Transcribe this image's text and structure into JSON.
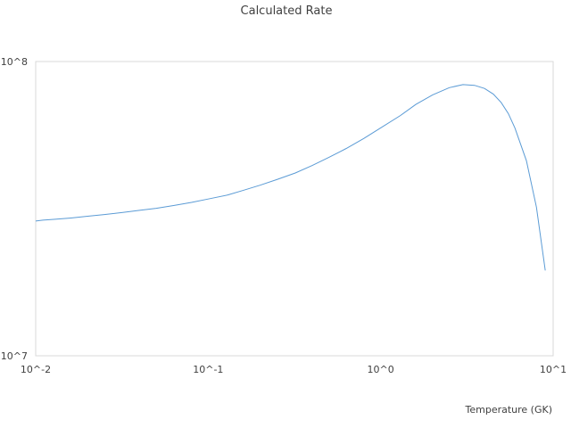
{
  "chart_data": {
    "type": "line",
    "title": "Calculated Rate",
    "xlabel": "Temperature (GK)",
    "ylabel": "",
    "x_scale": "log",
    "y_scale": "log",
    "xlim": [
      0.01,
      10
    ],
    "ylim": [
      10000000,
      100000000
    ],
    "x_ticks": [
      {
        "value": 0.01,
        "label": "10^-2"
      },
      {
        "value": 0.1,
        "label": "10^-1"
      },
      {
        "value": 1,
        "label": "10^0"
      },
      {
        "value": 10,
        "label": "10^1"
      }
    ],
    "y_ticks": [
      {
        "value": 10000000,
        "label": "10^7"
      },
      {
        "value": 100000000,
        "label": "10^8"
      }
    ],
    "grid": false,
    "legend": "none",
    "series": [
      {
        "color": "#5b9bd5",
        "x": [
          0.01,
          0.011,
          0.013,
          0.016,
          0.02,
          0.025,
          0.032,
          0.04,
          0.05,
          0.063,
          0.08,
          0.1,
          0.13,
          0.16,
          0.2,
          0.25,
          0.32,
          0.4,
          0.5,
          0.63,
          0.8,
          1.0,
          1.3,
          1.6,
          2.0,
          2.5,
          3.0,
          3.5,
          4.0,
          4.5,
          5.0,
          5.5,
          6.0,
          7.0,
          8.0,
          9.0
        ],
        "y": [
          28700000,
          28900000,
          29100000,
          29400000,
          29800000,
          30200000,
          30700000,
          31200000,
          31700000,
          32400000,
          33200000,
          34100000,
          35200000,
          36500000,
          38000000,
          39700000,
          41800000,
          44300000,
          47200000,
          50600000,
          54800000,
          59500000,
          65500000,
          71500000,
          77000000,
          81500000,
          83500000,
          83000000,
          81000000,
          77500000,
          72500000,
          66500000,
          59500000,
          46000000,
          32000000,
          19500000
        ]
      }
    ]
  }
}
